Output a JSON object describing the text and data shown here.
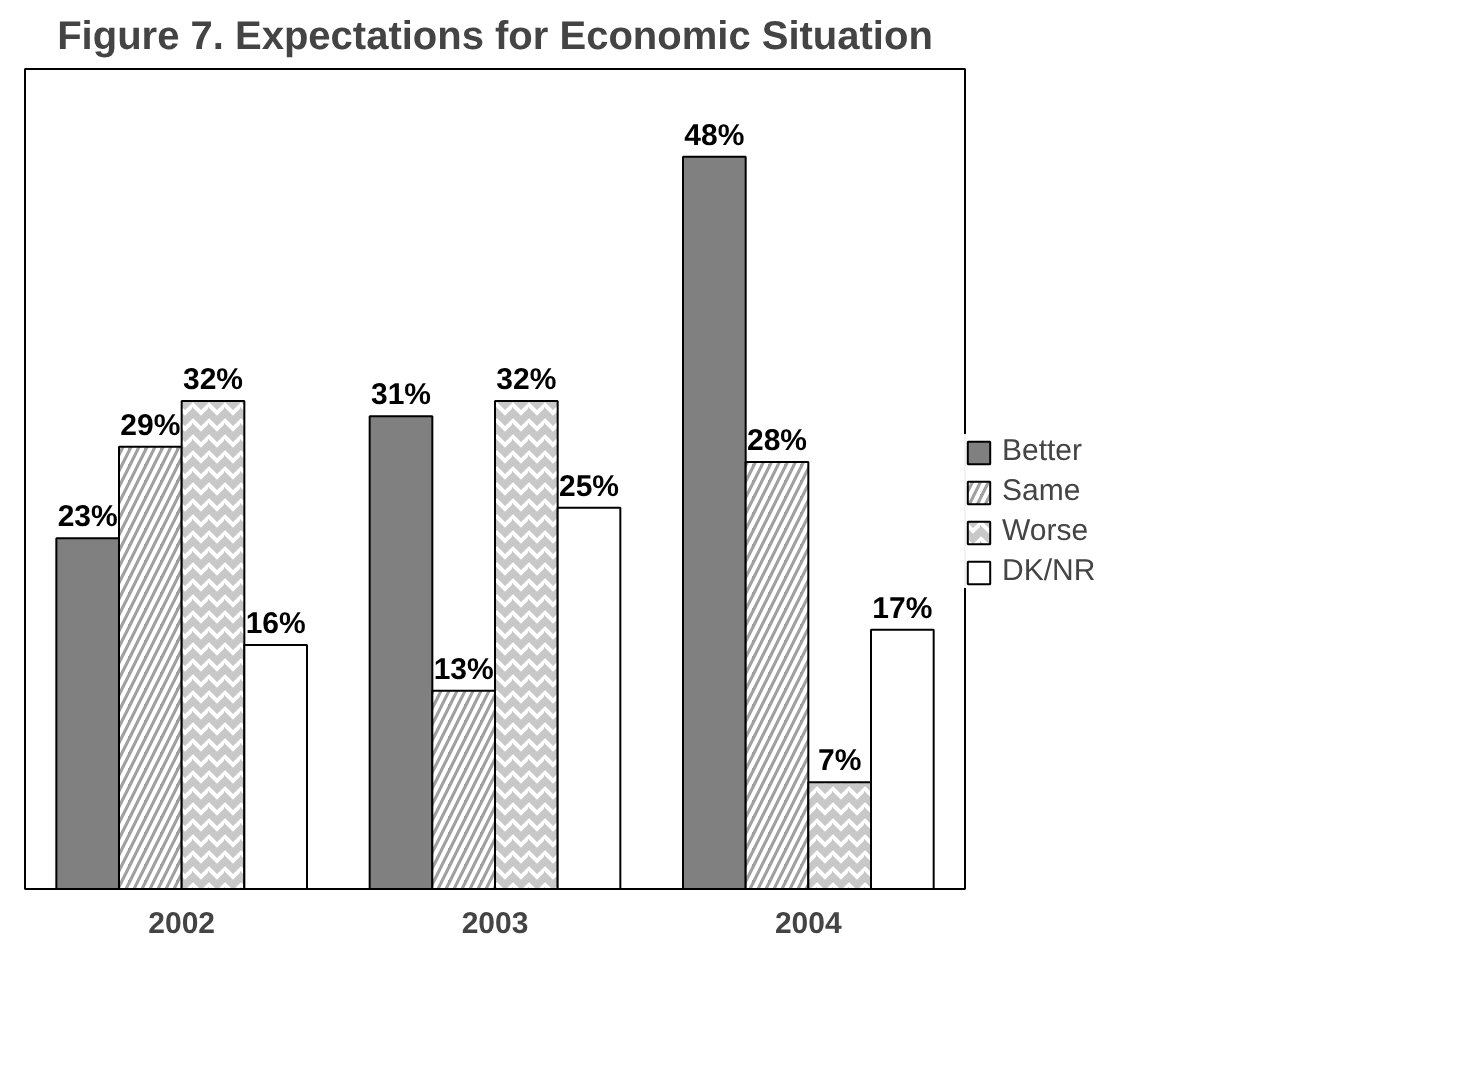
{
  "chart_data": {
    "type": "bar",
    "title": "Figure 7. Expectations for Economic Situation",
    "categories": [
      "2002",
      "2003",
      "2004"
    ],
    "series": [
      {
        "name": "Better",
        "color": "#808080",
        "values": [
          23,
          31,
          48
        ],
        "value_labels": [
          "23%",
          "31%",
          "48%"
        ]
      },
      {
        "name": "Same",
        "color": "#a0a0a0",
        "values": [
          29,
          13,
          28
        ],
        "value_labels": [
          "29%",
          "13%",
          "28%"
        ]
      },
      {
        "name": "Worse",
        "color": "#c8c8c8",
        "values": [
          32,
          32,
          7
        ],
        "value_labels": [
          "32%",
          "32%",
          "7%"
        ]
      },
      {
        "name": "DK/NR",
        "color": "#ffffff",
        "values": [
          16,
          25,
          17
        ],
        "value_labels": [
          "16%",
          "25%",
          "17%"
        ]
      }
    ],
    "legend": "right",
    "grid": false
  }
}
